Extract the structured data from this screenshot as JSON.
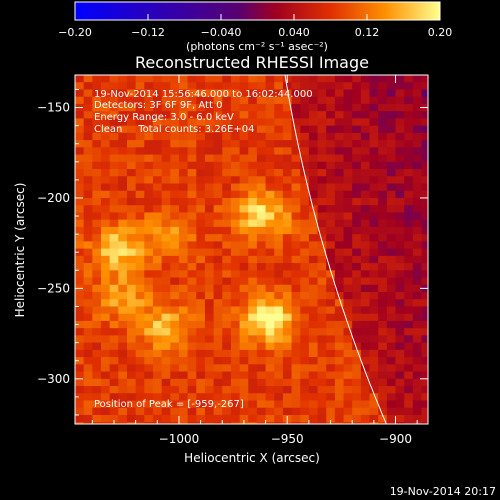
{
  "colorbar": {
    "ticks": [
      "-0.20",
      "-0.12",
      "-0.040",
      "0.040",
      "0.12",
      "0.20"
    ],
    "unit_label": "(photons cm⁻² s⁻¹ asec⁻²)"
  },
  "footer_timestamp": "19-Nov-2014 20:17",
  "chart_data": {
    "type": "heatmap",
    "title": "Reconstructed RHESSI Image",
    "xlabel": "Heliocentric X (arcsec)",
    "ylabel": "Heliocentric Y (arcsec)",
    "xlim": [
      -1048,
      -885
    ],
    "ylim": [
      -325,
      -132
    ],
    "xticks": [
      -1000,
      -950,
      -900
    ],
    "xtick_labels": [
      "−1000",
      "−950",
      "−900"
    ],
    "yticks": [
      -150,
      -200,
      -250,
      -300
    ],
    "ytick_labels": [
      "−150",
      "−200",
      "−250",
      "−300"
    ],
    "annotations": [
      "19-Nov-2014 15:56:46.000 to 16:02:44.000",
      "Detectors: 3F 6F 9F, Att 0",
      "Energy Range: 3.0 - 6.0 keV",
      "Clean     Total counts: 3.26E+04"
    ],
    "peak_label": "Position of Peak = [-959,-267]",
    "peak": [
      -959,
      -267
    ],
    "sources": [
      {
        "x": -959,
        "y": -267,
        "peak": 0.2
      },
      {
        "x": -962,
        "y": -210,
        "peak": 0.18
      },
      {
        "x": -1028,
        "y": -228,
        "peak": 0.17
      },
      {
        "x": -1006,
        "y": -272,
        "peak": 0.16
      },
      {
        "x": -1026,
        "y": -255,
        "peak": 0.14
      },
      {
        "x": -1004,
        "y": -220,
        "peak": 0.13
      }
    ],
    "colorbar_range": [
      -0.2,
      0.2
    ]
  }
}
